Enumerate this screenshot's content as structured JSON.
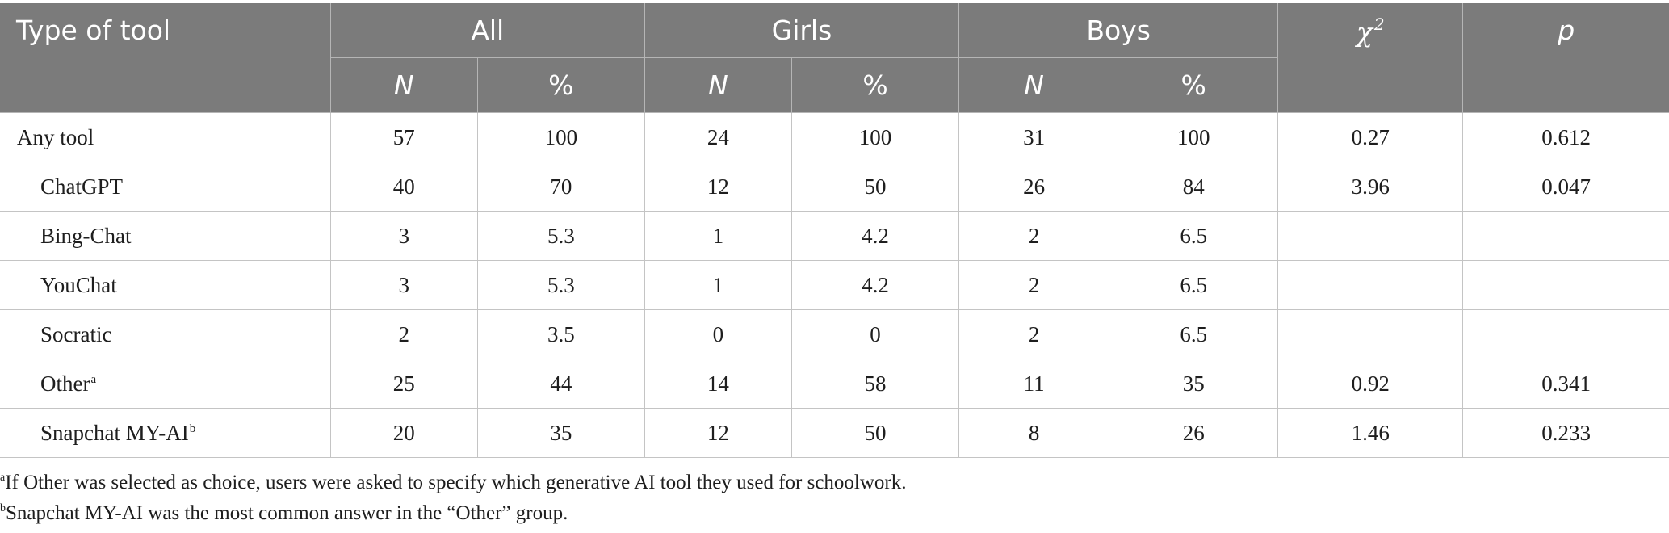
{
  "table": {
    "header": {
      "type_of_tool": "Type of tool",
      "groups": [
        "All",
        "Girls",
        "Boys"
      ],
      "chi": "χ",
      "chi_power": "2",
      "p": "p",
      "sub": [
        "N",
        "%",
        "N",
        "%",
        "N",
        "%"
      ]
    },
    "rows": [
      {
        "label": "Any tool",
        "sup": "",
        "cells": [
          "57",
          "100",
          "24",
          "100",
          "31",
          "100",
          "0.27",
          "0.612"
        ]
      },
      {
        "label": "ChatGPT",
        "sup": "",
        "cells": [
          "40",
          "70",
          "12",
          "50",
          "26",
          "84",
          "3.96",
          "0.047"
        ]
      },
      {
        "label": "Bing-Chat",
        "sup": "",
        "cells": [
          "3",
          "5.3",
          "1",
          "4.2",
          "2",
          "6.5",
          "",
          ""
        ]
      },
      {
        "label": "YouChat",
        "sup": "",
        "cells": [
          "3",
          "5.3",
          "1",
          "4.2",
          "2",
          "6.5",
          "",
          ""
        ]
      },
      {
        "label": "Socratic",
        "sup": "",
        "cells": [
          "2",
          "3.5",
          "0",
          "0",
          "2",
          "6.5",
          "",
          ""
        ]
      },
      {
        "label": "Other",
        "sup": "a",
        "cells": [
          "25",
          "44",
          "14",
          "58",
          "11",
          "35",
          "0.92",
          "0.341"
        ]
      },
      {
        "label": "Snapchat MY-AI",
        "sup": "b",
        "cells": [
          "20",
          "35",
          "12",
          "50",
          "8",
          "26",
          "1.46",
          "0.233"
        ]
      }
    ]
  },
  "footnotes": [
    {
      "mark": "a",
      "text": "If Other was selected as choice, users were asked to specify which generative AI tool they used for schoolwork."
    },
    {
      "mark": "b",
      "text": "Snapchat MY-AI was the most common answer in the “Other” group."
    }
  ]
}
